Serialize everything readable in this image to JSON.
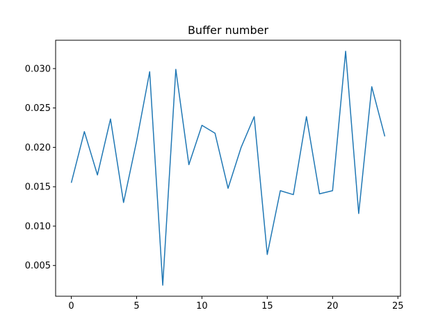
{
  "chart_data": {
    "type": "line",
    "title": "Buffer number",
    "xlabel": "",
    "ylabel": "",
    "xlim": [
      -1.2,
      25.2
    ],
    "ylim": [
      0.0011,
      0.0336
    ],
    "grid": false,
    "line_color": "#1f77b4",
    "x_ticks": [
      0,
      5,
      10,
      15,
      20,
      25
    ],
    "x_tick_labels": [
      "0",
      "5",
      "10",
      "15",
      "20",
      "25"
    ],
    "y_ticks": [
      0.005,
      0.01,
      0.015,
      0.02,
      0.025,
      0.03
    ],
    "y_tick_labels": [
      "0.005",
      "0.010",
      "0.015",
      "0.020",
      "0.025",
      "0.030"
    ],
    "series": [
      {
        "x": [
          0,
          1,
          2,
          3,
          4,
          5,
          6,
          7,
          8,
          9,
          10,
          11,
          12,
          13,
          14,
          15,
          16,
          17,
          18,
          19,
          20,
          21,
          22,
          23,
          24
        ],
        "y": [
          0.0155,
          0.022,
          0.0165,
          0.0236,
          0.013,
          0.0208,
          0.0296,
          0.0025,
          0.0299,
          0.0178,
          0.0228,
          0.0218,
          0.0148,
          0.02,
          0.0239,
          0.0064,
          0.0145,
          0.014,
          0.0239,
          0.0141,
          0.0145,
          0.0322,
          0.0116,
          0.0277,
          0.0214
        ]
      }
    ]
  }
}
